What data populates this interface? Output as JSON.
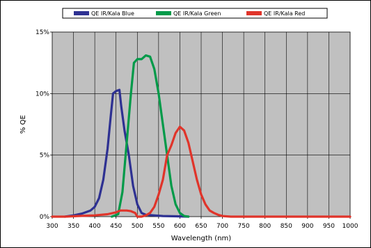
{
  "chart_data": {
    "type": "line",
    "xlabel": "Wavelength (nm)",
    "ylabel": "% QE",
    "xlim": [
      300,
      1000
    ],
    "ylim": [
      0,
      15
    ],
    "x_ticks": [
      300,
      350,
      400,
      450,
      500,
      550,
      600,
      650,
      700,
      750,
      800,
      850,
      900,
      950,
      1000
    ],
    "x_tick_labels": [
      "300",
      "350",
      "400",
      "450",
      "500",
      "550",
      "600",
      "650",
      "700",
      "750",
      "800",
      "850",
      "900",
      "950",
      "1000"
    ],
    "y_ticks": [
      0,
      5,
      10,
      15
    ],
    "y_tick_labels": [
      "0%",
      "5%",
      "10%",
      "15%"
    ],
    "grid": true,
    "legend_position": "top",
    "series": [
      {
        "name": "QE IR/Kala Blue",
        "color": "#2e3192",
        "points": [
          [
            330,
            0.0
          ],
          [
            350,
            0.1
          ],
          [
            370,
            0.25
          ],
          [
            390,
            0.5
          ],
          [
            400,
            0.8
          ],
          [
            410,
            1.5
          ],
          [
            420,
            3.0
          ],
          [
            430,
            5.5
          ],
          [
            437,
            8.0
          ],
          [
            443,
            10.0
          ],
          [
            450,
            10.2
          ],
          [
            458,
            10.3
          ],
          [
            462,
            9.0
          ],
          [
            470,
            7.0
          ],
          [
            480,
            5.0
          ],
          [
            490,
            2.5
          ],
          [
            500,
            1.0
          ],
          [
            510,
            0.3
          ],
          [
            520,
            0.15
          ],
          [
            560,
            0.05
          ],
          [
            600,
            0.02
          ],
          [
            620,
            0.0
          ]
        ]
      },
      {
        "name": "QE IR/Kala Green",
        "color": "#009a49",
        "points": [
          [
            440,
            0.0
          ],
          [
            455,
            0.2
          ],
          [
            465,
            2.0
          ],
          [
            475,
            6.0
          ],
          [
            485,
            10.0
          ],
          [
            492,
            12.5
          ],
          [
            500,
            12.8
          ],
          [
            510,
            12.8
          ],
          [
            520,
            13.1
          ],
          [
            530,
            13.0
          ],
          [
            540,
            12.0
          ],
          [
            550,
            10.0
          ],
          [
            560,
            7.5
          ],
          [
            570,
            5.0
          ],
          [
            580,
            2.5
          ],
          [
            590,
            1.0
          ],
          [
            600,
            0.3
          ],
          [
            610,
            0.05
          ],
          [
            620,
            0.0
          ]
        ]
      },
      {
        "name": "QE IR/Kala Red",
        "color": "#e0342a",
        "points": [
          [
            300,
            0.0
          ],
          [
            330,
            0.0
          ],
          [
            360,
            0.05
          ],
          [
            400,
            0.1
          ],
          [
            430,
            0.2
          ],
          [
            450,
            0.35
          ],
          [
            460,
            0.5
          ],
          [
            475,
            0.5
          ],
          [
            485,
            0.45
          ],
          [
            495,
            0.3
          ],
          [
            500,
            0.0
          ],
          [
            510,
            0.0
          ],
          [
            520,
            0.1
          ],
          [
            530,
            0.3
          ],
          [
            540,
            0.8
          ],
          [
            550,
            1.8
          ],
          [
            560,
            3.0
          ],
          [
            570,
            5.0
          ],
          [
            580,
            5.8
          ],
          [
            590,
            6.8
          ],
          [
            600,
            7.3
          ],
          [
            610,
            7.0
          ],
          [
            620,
            6.0
          ],
          [
            630,
            4.5
          ],
          [
            640,
            3.0
          ],
          [
            650,
            1.8
          ],
          [
            660,
            1.0
          ],
          [
            670,
            0.5
          ],
          [
            680,
            0.3
          ],
          [
            690,
            0.15
          ],
          [
            700,
            0.05
          ],
          [
            720,
            0.0
          ],
          [
            1000,
            0.0
          ]
        ]
      }
    ]
  }
}
